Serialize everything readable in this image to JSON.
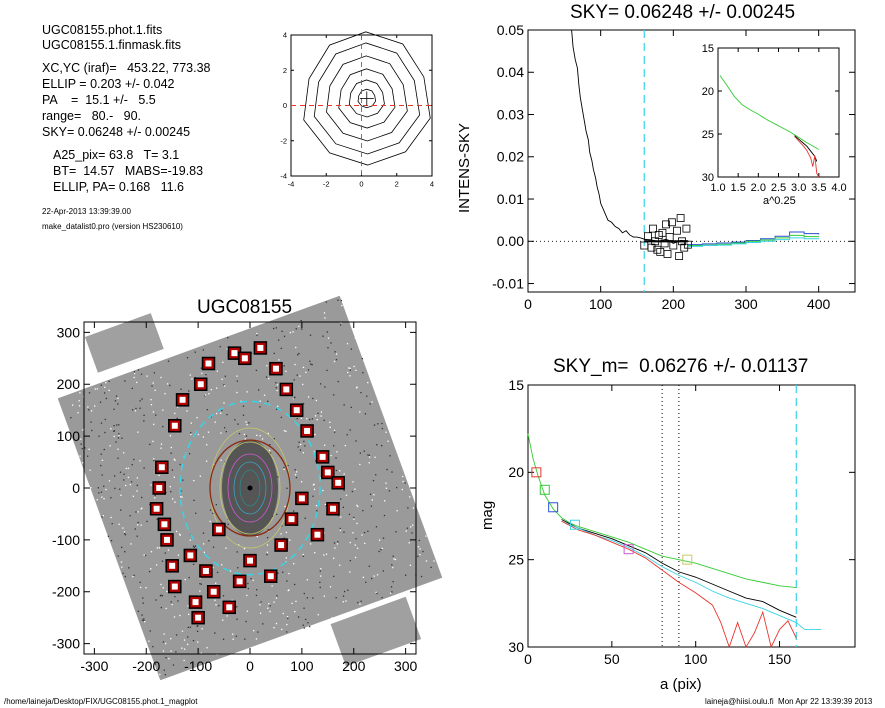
{
  "header": {
    "lines": [
      "UGC08155.phot.1.fits",
      "UGC08155.1.finmask.fits",
      "XC,YC (iraf)=   453.22, 773.38",
      "ELLIP = 0.203 +/- 0.042",
      "PA    =  15.1 +/-   5.5",
      "range=   80.-   90.",
      "SKY= 0.06248 +/- 0.00245",
      "A25_pix= 63.8   T= 3.1",
      "BT=  14.57   MABS=-19.83",
      "ELLIP, PA= 0.168   11.6"
    ],
    "date": "22-Apr-2013 13:39:39.00",
    "program": "make_datalist0.pro (version HS230610)"
  },
  "footer": {
    "path": "/home/laineja/Desktop/FIX/UGC08155.phot.1_magplot",
    "stamp": "laineja@hiisi.oulu.fi  Mon Apr 22 13:39:39 2013"
  },
  "colors": {
    "cyan": "#3ad3e6",
    "red": "#e8352e",
    "green": "#33cc33",
    "blue": "#2b4fd6",
    "olive": "#c9c96a",
    "magenta": "#d15ad1",
    "brown": "#8b2a10",
    "maskred": "#b00000"
  },
  "chart_data": [
    {
      "id": "centering",
      "type": "line",
      "title": "",
      "xlim": [
        -4,
        4
      ],
      "ylim": [
        -4,
        4
      ],
      "xticks": [
        "-4",
        "-2",
        "0",
        "2",
        "4"
      ],
      "yticks": [
        "-4",
        "-2",
        "0",
        "2",
        "4"
      ],
      "contour_radii": [
        0.5,
        1.0,
        1.6,
        2.3,
        3.0,
        3.6
      ],
      "center": [
        0.3,
        0.4
      ]
    },
    {
      "id": "sky",
      "type": "line",
      "title": "SKY= 0.06248 +/- 0.00245",
      "xlabel": "",
      "ylabel": "INTENS-SKY",
      "xlim": [
        0,
        450
      ],
      "ylim": [
        -0.012,
        0.05
      ],
      "xticks": [
        "0",
        "100",
        "200",
        "300",
        "400"
      ],
      "yticks": [
        "-0.01",
        "0.00",
        "0.01",
        "0.02",
        "0.03",
        "0.04",
        "0.05"
      ],
      "vline_x": 160,
      "profile": {
        "x": [
          60,
          62,
          65,
          68,
          70,
          72,
          75,
          78,
          80,
          83,
          85,
          88,
          90,
          93,
          95,
          98,
          100,
          105,
          110,
          115,
          120,
          125,
          130,
          135,
          140,
          145,
          150,
          155,
          160,
          170,
          180,
          190,
          200,
          210,
          220
        ],
        "y": [
          0.05,
          0.046,
          0.043,
          0.041,
          0.037,
          0.034,
          0.031,
          0.028,
          0.026,
          0.024,
          0.021,
          0.019,
          0.017,
          0.015,
          0.013,
          0.011,
          0.009,
          0.007,
          0.005,
          0.0045,
          0.0035,
          0.003,
          0.002,
          0.0025,
          0.0015,
          0.001,
          0.001,
          0.0008,
          0.0005,
          0.0003,
          0.0,
          0.0005,
          -0.0005,
          0.0002,
          0.0001
        ]
      },
      "steps": [
        {
          "name": "",
          "color": "#2b4fd6",
          "x": [
            220,
            240,
            260,
            280,
            300,
            320,
            340,
            360,
            380,
            400
          ],
          "y": [
            -0.0008,
            -0.0006,
            -0.0004,
            -0.0002,
            0.0002,
            0.0006,
            0.0012,
            0.0022,
            0.0018,
            0.0016
          ]
        },
        {
          "name": "",
          "color": "#33cc33",
          "x": [
            220,
            240,
            260,
            280,
            300,
            320,
            340,
            360,
            380,
            400
          ],
          "y": [
            -0.001,
            -0.0009,
            -0.0007,
            -0.0004,
            0.0,
            0.0003,
            0.0008,
            0.0014,
            0.0011,
            0.001
          ]
        },
        {
          "name": "",
          "color": "#3ad3e6",
          "x": [
            220,
            240,
            260,
            280,
            300,
            320,
            340,
            360,
            380,
            400
          ],
          "y": [
            -0.0012,
            -0.001,
            -0.0009,
            -0.0006,
            -0.0003,
            0.0,
            0.0004,
            0.0008,
            0.0006,
            0.0005
          ]
        }
      ],
      "sky_points": {
        "x": [
          160,
          165,
          170,
          172,
          175,
          178,
          180,
          182,
          185,
          188,
          190,
          192,
          195,
          198,
          200,
          205,
          208,
          210,
          212,
          215,
          218,
          220
        ],
        "y": [
          -0.001,
          0.0012,
          -0.0015,
          0.003,
          0.0,
          -0.002,
          0.0015,
          -0.0025,
          0.002,
          -0.0005,
          0.004,
          -0.003,
          0.001,
          0.0045,
          -0.001,
          0.0025,
          -0.0035,
          0.0055,
          0.0,
          -0.0015,
          0.003,
          -0.0008
        ]
      },
      "inset": {
        "xlabel": "a^0.25",
        "xlim": [
          1.0,
          4.0
        ],
        "ylim": [
          15,
          30
        ],
        "xticks": [
          "1.0",
          "1.5",
          "2.0",
          "2.5",
          "3.0",
          "3.5",
          "4.0"
        ],
        "yticks": [
          "15",
          "20",
          "25",
          "30"
        ],
        "series": [
          {
            "name": "",
            "color": "#33cc33",
            "x": [
              1.05,
              1.2,
              1.4,
              1.6,
              1.8,
              2.0,
              2.2,
              2.4,
              2.6,
              2.8,
              3.0,
              3.2,
              3.35,
              3.5
            ],
            "y": [
              18.2,
              19.2,
              20.6,
              21.6,
              22.2,
              22.7,
              23.3,
              23.8,
              24.3,
              24.8,
              25.4,
              26.0,
              26.4,
              26.8
            ]
          },
          {
            "name": "",
            "color": "#000000",
            "x": [
              2.9,
              3.0,
              3.1,
              3.2,
              3.3,
              3.4,
              3.45
            ],
            "y": [
              25.2,
              25.6,
              26.0,
              26.4,
              27.0,
              27.6,
              28.2
            ]
          },
          {
            "name": "",
            "color": "#e8352e",
            "x": [
              2.9,
              3.0,
              3.1,
              3.2,
              3.3,
              3.35,
              3.4,
              3.45,
              3.5
            ],
            "y": [
              25.3,
              25.8,
              26.3,
              26.9,
              27.8,
              28.8,
              27.5,
              29.6,
              30.0
            ]
          }
        ]
      }
    },
    {
      "id": "image",
      "type": "scatter",
      "title": "UGC08155",
      "xlim": [
        -320,
        320
      ],
      "ylim": [
        -320,
        320
      ],
      "xticks": [
        "-300",
        "-200",
        "-100",
        "0",
        "100",
        "200",
        "300"
      ],
      "yticks": [
        "-300",
        "-200",
        "-100",
        "0",
        "100",
        "200",
        "300"
      ],
      "ellipse": {
        "cx": 0,
        "cy": 0,
        "a": 167,
        "b": 135,
        "pa_deg": 15.1
      },
      "mask_boxes": {
        "x": [
          -180,
          -175,
          -170,
          -165,
          -160,
          -150,
          -145,
          -145,
          -130,
          -115,
          -105,
          -100,
          -95,
          -85,
          -80,
          -70,
          -60,
          -40,
          -30,
          -20,
          -10,
          0,
          20,
          40,
          50,
          60,
          70,
          80,
          90,
          100,
          110,
          130,
          140,
          150,
          160,
          170
        ],
        "y": [
          -40,
          0,
          40,
          -70,
          -100,
          -150,
          -190,
          120,
          170,
          -130,
          -220,
          -250,
          200,
          -160,
          240,
          -200,
          -80,
          -230,
          260,
          -180,
          250,
          -140,
          270,
          -170,
          230,
          -110,
          190,
          -60,
          150,
          -20,
          110,
          -90,
          60,
          30,
          -40,
          10
        ]
      }
    },
    {
      "id": "mag",
      "type": "line",
      "title": "SKY_m=  0.06276 +/- 0.01137",
      "xlabel": "a (pix)",
      "ylabel": "mag",
      "xlim": [
        0,
        195
      ],
      "ylim": [
        15,
        30
      ],
      "xticks": [
        "0",
        "50",
        "100",
        "150"
      ],
      "yticks": [
        "15",
        "20",
        "25",
        "30"
      ],
      "vlines_dotted": [
        80,
        90
      ],
      "vline_cyan": 160,
      "series": [
        {
          "name": "",
          "color": "#33cc33",
          "x": [
            0,
            3,
            6,
            10,
            15,
            20,
            25,
            30,
            40,
            50,
            60,
            70,
            80,
            90,
            100,
            110,
            120,
            130,
            140,
            150,
            160
          ],
          "y": [
            17.8,
            19.2,
            20.2,
            21.3,
            22.1,
            22.6,
            22.9,
            23.1,
            23.4,
            23.7,
            24.0,
            24.4,
            24.8,
            25.0,
            25.2,
            25.5,
            25.8,
            26.1,
            26.3,
            26.5,
            26.6
          ]
        },
        {
          "name": "",
          "color": "#000000",
          "x": [
            20,
            30,
            40,
            50,
            60,
            70,
            80,
            90,
            100,
            110,
            120,
            130,
            140,
            150,
            160
          ],
          "y": [
            22.7,
            23.2,
            23.5,
            23.8,
            24.2,
            24.6,
            25.2,
            25.7,
            26.0,
            26.4,
            26.8,
            27.2,
            27.4,
            27.9,
            28.3
          ]
        },
        {
          "name": "",
          "color": "#3ad3e6",
          "x": [
            20,
            30,
            40,
            50,
            60,
            70,
            80,
            90,
            100,
            110,
            120,
            130,
            140,
            150,
            160,
            165,
            175
          ],
          "y": [
            22.8,
            23.2,
            23.6,
            23.9,
            24.3,
            24.8,
            25.4,
            25.9,
            26.3,
            26.8,
            27.2,
            27.5,
            27.8,
            28.2,
            28.6,
            29.0,
            29.0
          ]
        },
        {
          "name": "",
          "color": "#e8352e",
          "x": [
            20,
            30,
            40,
            50,
            60,
            70,
            80,
            90,
            100,
            110,
            115,
            120,
            125,
            130,
            135,
            140,
            145,
            150,
            155,
            160
          ],
          "y": [
            22.8,
            23.3,
            23.6,
            24.0,
            24.4,
            24.9,
            25.6,
            26.3,
            26.9,
            27.6,
            28.6,
            30.0,
            28.6,
            30.0,
            29.2,
            28.0,
            30.0,
            29.0,
            28.5,
            29.5
          ]
        }
      ],
      "markers": [
        {
          "x": 5,
          "y": 20.0,
          "color": "#e8352e"
        },
        {
          "x": 10,
          "y": 21.0,
          "color": "#33cc33"
        },
        {
          "x": 15,
          "y": 22.0,
          "color": "#2b4fd6"
        },
        {
          "x": 28,
          "y": 23.0,
          "color": "#3ad3e6"
        },
        {
          "x": 60,
          "y": 24.4,
          "color": "#d15ad1"
        },
        {
          "x": 95,
          "y": 25.0,
          "color": "#c9c96a"
        }
      ]
    }
  ]
}
